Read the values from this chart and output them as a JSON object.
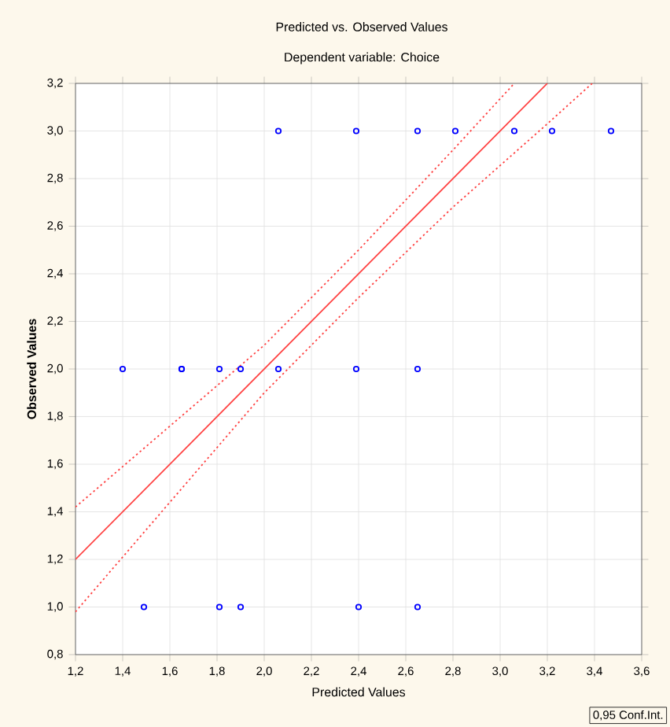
{
  "chart_data": {
    "type": "scatter",
    "title": "Predicted vs. Observed Values",
    "subtitle": "Dependent variable: Choice",
    "xlabel": "Predicted Values",
    "ylabel": "Observed Values",
    "xlim": [
      1.2,
      3.6
    ],
    "ylim": [
      0.8,
      3.2
    ],
    "xticks": [
      {
        "value": 1.2,
        "label": "1,2"
      },
      {
        "value": 1.4,
        "label": "1,4"
      },
      {
        "value": 1.6,
        "label": "1,6"
      },
      {
        "value": 1.8,
        "label": "1,8"
      },
      {
        "value": 2.0,
        "label": "2,0"
      },
      {
        "value": 2.2,
        "label": "2,2"
      },
      {
        "value": 2.4,
        "label": "2,4"
      },
      {
        "value": 2.6,
        "label": "2,6"
      },
      {
        "value": 2.8,
        "label": "2,8"
      },
      {
        "value": 3.0,
        "label": "3,0"
      },
      {
        "value": 3.2,
        "label": "3,2"
      },
      {
        "value": 3.4,
        "label": "3,4"
      },
      {
        "value": 3.6,
        "label": "3,6"
      }
    ],
    "yticks": [
      {
        "value": 0.8,
        "label": "0,8"
      },
      {
        "value": 1.0,
        "label": "1,0"
      },
      {
        "value": 1.2,
        "label": "1,2"
      },
      {
        "value": 1.4,
        "label": "1,4"
      },
      {
        "value": 1.6,
        "label": "1,6"
      },
      {
        "value": 1.8,
        "label": "1,8"
      },
      {
        "value": 2.0,
        "label": "2,0"
      },
      {
        "value": 2.2,
        "label": "2,2"
      },
      {
        "value": 2.4,
        "label": "2,4"
      },
      {
        "value": 2.6,
        "label": "2,6"
      },
      {
        "value": 2.8,
        "label": "2,8"
      },
      {
        "value": 3.0,
        "label": "3,0"
      },
      {
        "value": 3.2,
        "label": "3,2"
      }
    ],
    "grid": true,
    "series": [
      {
        "marker": "circle",
        "color": "#0000ff",
        "x": [
          2.06,
          2.39,
          2.65,
          2.81,
          3.06,
          3.22,
          3.47,
          1.4,
          1.65,
          1.65,
          1.81,
          1.9,
          2.06,
          2.39,
          2.65,
          1.49,
          1.81,
          1.9,
          2.4,
          2.65
        ],
        "values": [
          3,
          3,
          3,
          3,
          3,
          3,
          3,
          2,
          2,
          2,
          2,
          2,
          2,
          2,
          2,
          1,
          1,
          1,
          1,
          1
        ]
      },
      {
        "type": "line",
        "line_style": "solid",
        "color": "#ff4040",
        "x": [
          1.2,
          3.2
        ],
        "values": [
          1.2,
          3.2
        ]
      },
      {
        "type": "line",
        "line_style": "dotted",
        "color": "#ff4040",
        "x": [
          1.2,
          1.6,
          2.0,
          2.4,
          2.8,
          3.06
        ],
        "values": [
          1.42,
          1.76,
          2.1,
          2.5,
          2.92,
          3.2
        ]
      },
      {
        "type": "line",
        "line_style": "dotted",
        "color": "#ff4040",
        "x": [
          1.2,
          1.6,
          2.0,
          2.4,
          2.8,
          3.2,
          3.39
        ],
        "values": [
          0.98,
          1.44,
          1.9,
          2.3,
          2.68,
          3.03,
          3.2
        ]
      }
    ],
    "annotations": [
      "0,95 Conf.Int."
    ]
  }
}
